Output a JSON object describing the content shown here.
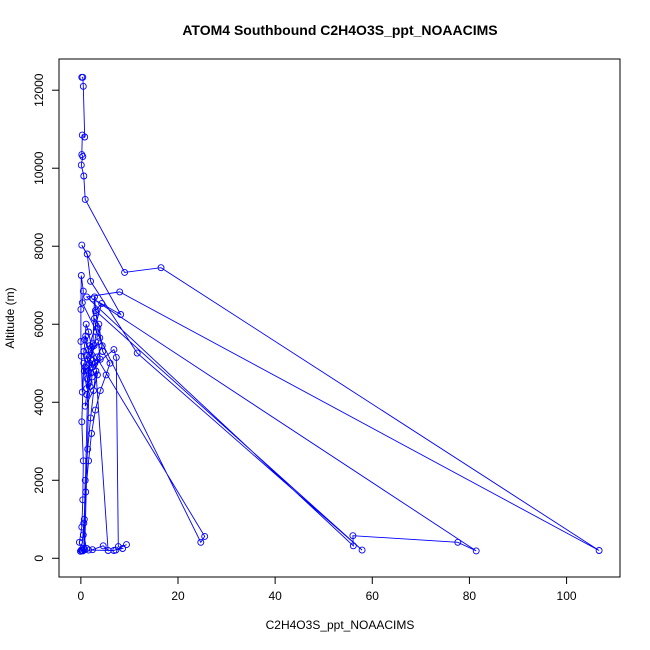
{
  "chart_data": {
    "type": "line",
    "title": "ATOM4 Southbound C2H4O3S_ppt_NOAACIMS",
    "xlabel": "C2H4O3S_ppt_NOAACIMS",
    "ylabel": "Altitude (m)",
    "xlim": [
      -4.5,
      111
    ],
    "ylim": [
      -480,
      12800
    ],
    "xticks": [
      0,
      20,
      40,
      60,
      80,
      100
    ],
    "yticks": [
      0,
      2000,
      4000,
      6000,
      8000,
      10000,
      12000
    ],
    "marker": "open-circle",
    "series_color": "#0000ff",
    "grid": false,
    "series": [
      {
        "points": [
          [
            0.2,
            12330
          ],
          [
            0.4,
            12330
          ],
          [
            0.5,
            12100
          ],
          [
            0.8,
            10800
          ],
          [
            0.3,
            10850
          ],
          [
            0.2,
            10350
          ],
          [
            0.4,
            10300
          ],
          [
            0.1,
            10080
          ],
          [
            0.6,
            9800
          ],
          [
            0.9,
            9200
          ],
          [
            9.0,
            7330
          ],
          [
            16.5,
            7450
          ],
          [
            106.7,
            200
          ],
          [
            8.0,
            6830
          ],
          [
            1.2,
            6700
          ],
          [
            56.1,
            320
          ],
          [
            56.0,
            580
          ],
          [
            77.6,
            410
          ],
          [
            81.4,
            190
          ],
          [
            2.5,
            6650
          ],
          [
            8.2,
            6250
          ],
          [
            0.2,
            8030
          ],
          [
            1.3,
            7800
          ],
          [
            2.0,
            7100
          ],
          [
            11.6,
            5260
          ],
          [
            57.9,
            210
          ],
          [
            3.0,
            6350
          ],
          [
            4.3,
            6530
          ],
          [
            1.8,
            5450
          ],
          [
            25.5,
            560
          ],
          [
            24.7,
            410
          ],
          [
            0.3,
            6550
          ],
          [
            0.5,
            6850
          ],
          [
            0.1,
            7250
          ],
          [
            0.0,
            6380
          ],
          [
            0.0,
            5560
          ],
          [
            0.1,
            5180
          ],
          [
            0.3,
            4260
          ],
          [
            0.6,
            5000
          ],
          [
            0.2,
            3500
          ],
          [
            0.5,
            2500
          ],
          [
            0.4,
            1500
          ],
          [
            0.2,
            800
          ],
          [
            -0.3,
            410
          ],
          [
            0.1,
            200
          ],
          [
            0.6,
            230
          ],
          [
            1.5,
            4800
          ],
          [
            2.5,
            5500
          ],
          [
            2.8,
            6700
          ],
          [
            3.1,
            6300
          ],
          [
            3.5,
            5900
          ],
          [
            3.9,
            5650
          ],
          [
            4.4,
            5450
          ],
          [
            3.3,
            5160
          ],
          [
            2.7,
            4960
          ],
          [
            2.1,
            4750
          ],
          [
            1.7,
            4500
          ],
          [
            1.2,
            4200
          ],
          [
            0.9,
            3900
          ],
          [
            2.6,
            4300
          ],
          [
            3.4,
            4700
          ],
          [
            2.9,
            5000
          ],
          [
            2.2,
            5400
          ],
          [
            1.6,
            5800
          ],
          [
            1.1,
            6000
          ],
          [
            0.8,
            5600
          ],
          [
            1.9,
            5200
          ],
          [
            3.6,
            5550
          ],
          [
            4.0,
            5100
          ],
          [
            2.4,
            4900
          ],
          [
            6.8,
            5350
          ],
          [
            7.3,
            5150
          ],
          [
            7.7,
            300
          ],
          [
            8.6,
            250
          ],
          [
            7.2,
            210
          ],
          [
            9.4,
            350
          ],
          [
            6.8,
            200
          ],
          [
            1.6,
            210
          ],
          [
            2.4,
            220
          ],
          [
            4.6,
            320
          ],
          [
            5.6,
            200
          ],
          [
            3.1,
            4800
          ],
          [
            2.0,
            3600
          ],
          [
            1.4,
            2800
          ],
          [
            0.9,
            2000
          ],
          [
            0.7,
            1000
          ],
          [
            0.5,
            600
          ],
          [
            1.2,
            250
          ],
          [
            0.4,
            190
          ],
          [
            -0.1,
            180
          ],
          [
            0.3,
            200
          ],
          [
            0.8,
            220
          ],
          [
            1.8,
            5000
          ],
          [
            1.5,
            5350
          ],
          [
            1.0,
            5700
          ],
          [
            0.6,
            5300
          ],
          [
            0.9,
            4900
          ],
          [
            1.3,
            4600
          ],
          [
            1.9,
            4400
          ],
          [
            2.3,
            4650
          ],
          [
            1.7,
            4950
          ],
          [
            1.1,
            5200
          ],
          [
            0.7,
            4800
          ],
          [
            1.2,
            4350
          ],
          [
            2.0,
            5100
          ],
          [
            2.7,
            5450
          ],
          [
            3.2,
            5800
          ],
          [
            2.8,
            6150
          ],
          [
            3.7,
            6000
          ],
          [
            4.5,
            5300
          ],
          [
            6.0,
            5000
          ],
          [
            5.2,
            4700
          ],
          [
            4.0,
            4300
          ],
          [
            3.0,
            3800
          ],
          [
            2.2,
            3200
          ],
          [
            1.6,
            2500
          ],
          [
            1.0,
            1700
          ],
          [
            0.6,
            900
          ],
          [
            0.3,
            400
          ],
          [
            0.1,
            210
          ]
        ]
      }
    ]
  }
}
